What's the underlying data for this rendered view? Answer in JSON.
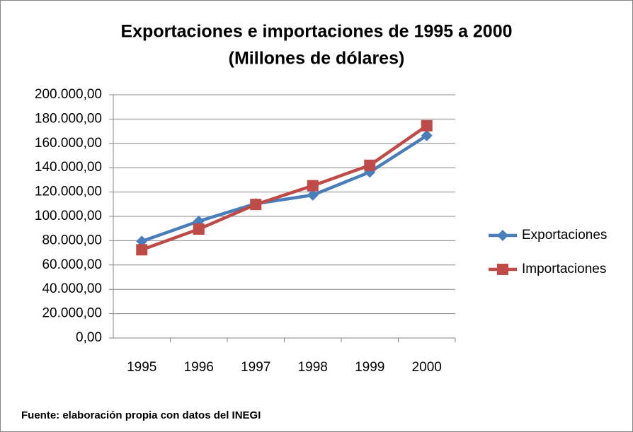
{
  "chart_data": {
    "type": "line",
    "title": "Exportaciones e importaciones de 1995  a  2000",
    "subtitle": "(Millones de dólares)",
    "categories": [
      "1995",
      "1996",
      "1997",
      "1998",
      "1999",
      "2000"
    ],
    "series": [
      {
        "name": "Exportaciones",
        "color": "#4a7ebb",
        "marker": "diamond",
        "values": [
          79500,
          96000,
          110400,
          117500,
          136400,
          166400
        ]
      },
      {
        "name": "Importaciones",
        "color": "#be4b48",
        "marker": "square",
        "values": [
          72500,
          89500,
          109800,
          125200,
          142000,
          174500
        ]
      }
    ],
    "ylim": [
      0,
      200000
    ],
    "yticks": [
      {
        "value": 0,
        "label": "0,00"
      },
      {
        "value": 20000,
        "label": "20.000,00"
      },
      {
        "value": 40000,
        "label": "40.000,00"
      },
      {
        "value": 60000,
        "label": "60.000,00"
      },
      {
        "value": 80000,
        "label": "80.000,00"
      },
      {
        "value": 100000,
        "label": "100.000,00"
      },
      {
        "value": 120000,
        "label": "120.000,00"
      },
      {
        "value": 140000,
        "label": "140.000,00"
      },
      {
        "value": 160000,
        "label": "160.000,00"
      },
      {
        "value": 180000,
        "label": "180.000,00"
      },
      {
        "value": 200000,
        "label": "200.000,00"
      }
    ],
    "grid": true,
    "legend": "right",
    "note": "Fuente: elaboración propia con datos del INEGI"
  }
}
